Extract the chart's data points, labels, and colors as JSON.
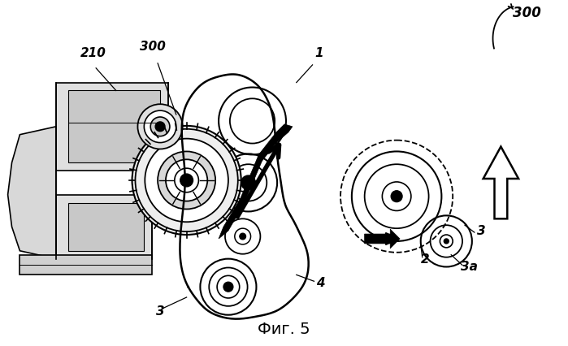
{
  "title": "Фиг. 5",
  "title_fontsize": 14,
  "background_color": "#ffffff",
  "fig_width": 6.99,
  "fig_height": 4.26,
  "dpi": 100
}
